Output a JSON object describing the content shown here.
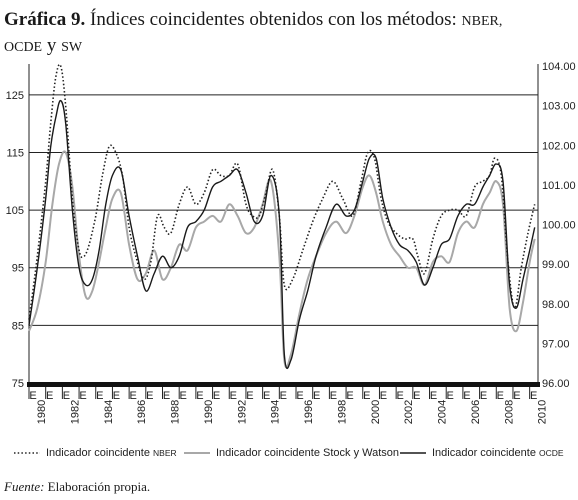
{
  "header": {
    "title_bold": "Gráfica 9.",
    "title_rest": "Índices coincidentes obtenidos con los métodos:",
    "title_sc1": "NBER,",
    "title_sc2": "OCDE",
    "title_conj": "y",
    "title_sc3": "SW"
  },
  "footer": {
    "source_label": "Fuente:",
    "source_text": "Elaboración propia."
  },
  "legend": [
    {
      "label": "Indicador coincidente",
      "suffix": "NBER",
      "style": "dotted"
    },
    {
      "label": "Indicador coincidente Stock y Watson",
      "suffix": "",
      "style": "gray"
    },
    {
      "label": "Indicador coincidente",
      "suffix": "OCDE",
      "style": "black"
    }
  ],
  "chart_data": {
    "type": "line",
    "title": "",
    "xlabel": "",
    "ylabel": "",
    "ylim_left": [
      75,
      130
    ],
    "ylim_right": [
      96.0,
      104.0
    ],
    "xlim": [
      1980.0,
      2010.5
    ],
    "grid": "horizontal lines at left-axis ticks",
    "left_ticks": [
      "75",
      "85",
      "95",
      "105",
      "115",
      "125"
    ],
    "left_tick_values": [
      75,
      85,
      95,
      105,
      115,
      125
    ],
    "right_ticks": [
      "96.00",
      "97.00",
      "98.00",
      "99.00",
      "100.00",
      "101.00",
      "102.00",
      "103.00",
      "104.00"
    ],
    "right_tick_values": [
      96,
      97,
      98,
      99,
      100,
      101,
      102,
      103,
      104
    ],
    "x_year_labels": [
      "1980",
      "1982",
      "1984",
      "1986",
      "1988",
      "1990",
      "1992",
      "1994",
      "1996",
      "1998",
      "2000",
      "2002",
      "2004",
      "2006",
      "2008",
      "2010"
    ],
    "x_year_values": [
      1980,
      1982,
      1984,
      1986,
      1988,
      1990,
      1992,
      1994,
      1996,
      1998,
      2000,
      2002,
      2004,
      2006,
      2008,
      2010
    ],
    "x_month_mark": "E",
    "series": [
      {
        "name": "Indicador coincidente NBER",
        "axis": "left",
        "style": "dotted",
        "color": "#222222",
        "x": [
          1980.0,
          1980.5,
          1981.0,
          1981.3,
          1981.6,
          1981.9,
          1982.2,
          1982.6,
          1983.0,
          1983.3,
          1983.6,
          1984.0,
          1984.4,
          1984.8,
          1985.2,
          1985.6,
          1986.0,
          1986.4,
          1986.9,
          1987.3,
          1987.7,
          1988.1,
          1988.5,
          1989.0,
          1989.5,
          1990.0,
          1990.5,
          1991.0,
          1991.5,
          1992.0,
          1992.5,
          1993.0,
          1993.4,
          1993.8,
          1994.2,
          1994.6,
          1995.0,
          1995.3,
          1995.8,
          1996.4,
          1997.0,
          1997.6,
          1998.2,
          1998.8,
          1999.4,
          1999.9,
          2000.3,
          2000.7,
          2001.1,
          2001.5,
          2002.0,
          2002.5,
          2003.0,
          2003.3,
          2003.7,
          2004.2,
          2004.7,
          2005.2,
          2005.7,
          2006.2,
          2006.7,
          2007.2,
          2007.6,
          2007.9,
          2008.3,
          2008.7,
          2009.1,
          2009.5,
          2009.9,
          2010.3
        ],
        "y": [
          86,
          97,
          110,
          120,
          128,
          130,
          123,
          107,
          98,
          97,
          99,
          104,
          111,
          116,
          115,
          111,
          102,
          97,
          93,
          96,
          104,
          102,
          101,
          106,
          109,
          106,
          108,
          112,
          111,
          111,
          113,
          106,
          104,
          104,
          108,
          112,
          104,
          92,
          93,
          98,
          103,
          107,
          110,
          107,
          104,
          110,
          115,
          114,
          107,
          103,
          101,
          100,
          100,
          97,
          94,
          100,
          104,
          105,
          105,
          104,
          109,
          110,
          111,
          114,
          111,
          96,
          88,
          95,
          101,
          106
        ]
      },
      {
        "name": "Indicador coincidente Stock y Watson",
        "axis": "left",
        "style": "gray",
        "color": "#a8a8a8",
        "x": [
          1980.0,
          1980.5,
          1981.0,
          1981.4,
          1981.8,
          1982.2,
          1982.6,
          1983.0,
          1983.4,
          1983.8,
          1984.2,
          1984.6,
          1985.0,
          1985.5,
          1986.0,
          1986.5,
          1987.0,
          1987.5,
          1988.0,
          1988.5,
          1989.0,
          1989.5,
          1990.0,
          1990.5,
          1991.0,
          1991.5,
          1992.0,
          1992.5,
          1993.0,
          1993.5,
          1994.0,
          1994.5,
          1995.0,
          1995.3,
          1995.7,
          1996.2,
          1996.7,
          1997.2,
          1997.8,
          1998.4,
          1999.0,
          1999.5,
          2000.0,
          2000.4,
          2000.8,
          2001.2,
          2001.7,
          2002.2,
          2002.7,
          2003.2,
          2003.7,
          2004.2,
          2004.7,
          2005.2,
          2005.7,
          2006.2,
          2006.7,
          2007.2,
          2007.6,
          2008.0,
          2008.4,
          2008.8,
          2009.2,
          2009.6,
          2010.0,
          2010.3
        ],
        "y": [
          84,
          88,
          96,
          106,
          113,
          115,
          109,
          97,
          90,
          91,
          96,
          102,
          107,
          108,
          99,
          93,
          94,
          98,
          93,
          95,
          99,
          98,
          102,
          103,
          104,
          103,
          106,
          104,
          101,
          102,
          106,
          110,
          97,
          79,
          80,
          87,
          93,
          97,
          101,
          103,
          101,
          104,
          109,
          111,
          108,
          103,
          99,
          97,
          95,
          95,
          92,
          96,
          97,
          96,
          101,
          103,
          102,
          106,
          108,
          110,
          106,
          88,
          84,
          89,
          96,
          100
        ]
      },
      {
        "name": "Indicador coincidente OCDE",
        "axis": "left",
        "style": "black",
        "color": "#1a1a1a",
        "x": [
          1980.0,
          1980.5,
          1981.0,
          1981.3,
          1981.6,
          1981.9,
          1982.2,
          1982.6,
          1983.0,
          1983.4,
          1983.8,
          1984.2,
          1984.6,
          1985.0,
          1985.5,
          1986.0,
          1986.5,
          1987.0,
          1987.5,
          1988.0,
          1988.5,
          1989.0,
          1989.5,
          1990.0,
          1990.5,
          1991.0,
          1991.5,
          1992.0,
          1992.5,
          1993.0,
          1993.5,
          1994.0,
          1994.5,
          1995.0,
          1995.3,
          1995.7,
          1996.2,
          1996.7,
          1997.2,
          1997.8,
          1998.4,
          1999.0,
          1999.5,
          2000.0,
          2000.4,
          2000.8,
          2001.2,
          2001.7,
          2002.2,
          2002.7,
          2003.2,
          2003.7,
          2004.2,
          2004.7,
          2005.2,
          2005.7,
          2006.2,
          2006.7,
          2007.2,
          2007.6,
          2008.0,
          2008.4,
          2008.8,
          2009.2,
          2009.6,
          2010.0,
          2010.3
        ],
        "y": [
          85,
          95,
          107,
          116,
          121,
          124,
          120,
          105,
          95,
          92,
          93,
          98,
          106,
          111,
          112,
          104,
          97,
          91,
          94,
          97,
          95,
          97,
          102,
          103,
          105,
          109,
          110,
          111,
          112,
          108,
          103,
          104,
          111,
          104,
          80,
          79,
          86,
          91,
          97,
          102,
          106,
          104,
          105,
          110,
          114,
          114,
          107,
          102,
          99,
          98,
          96,
          92,
          95,
          99,
          100,
          104,
          106,
          106,
          109,
          111,
          113,
          110,
          92,
          88,
          93,
          98,
          102
        ]
      }
    ]
  }
}
